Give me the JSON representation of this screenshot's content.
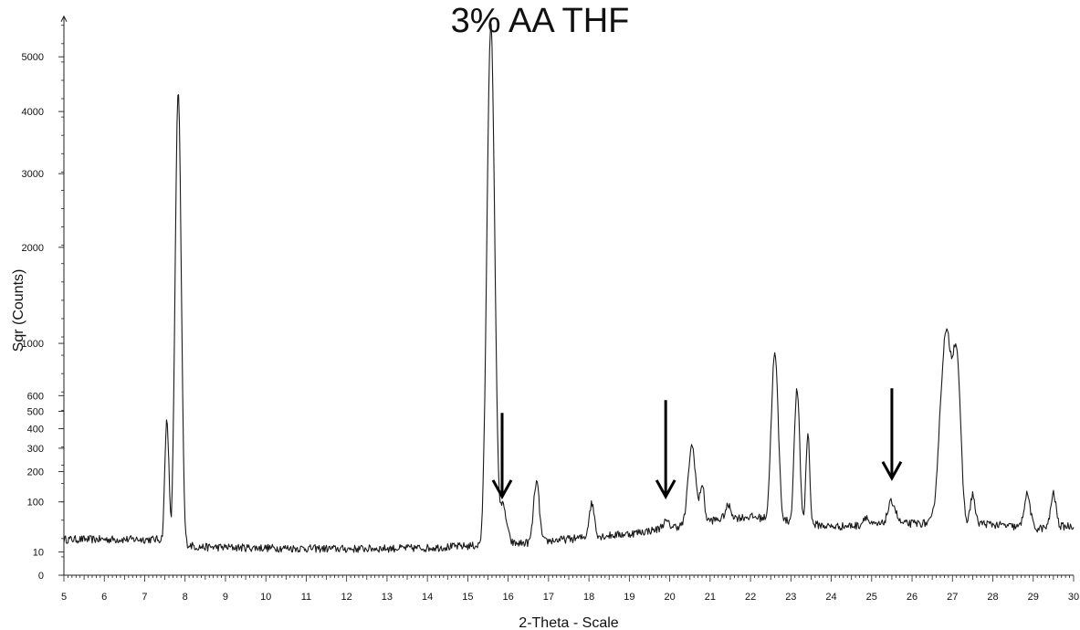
{
  "chart_data": {
    "type": "line",
    "title": "3% AA THF",
    "xlabel": "2-Theta - Scale",
    "ylabel": "Sqr (Counts)",
    "y_scale": "sqrt",
    "xlim": [
      5,
      30
    ],
    "ylim": [
      0,
      5700
    ],
    "x_ticks": [
      5,
      6,
      7,
      8,
      9,
      10,
      11,
      12,
      13,
      14,
      15,
      16,
      17,
      18,
      19,
      20,
      21,
      22,
      23,
      24,
      25,
      26,
      27,
      28,
      29,
      30
    ],
    "y_ticks": [
      0,
      10,
      100,
      200,
      300,
      400,
      500,
      600,
      1000,
      2000,
      3000,
      4000,
      5000
    ],
    "grid": false,
    "legend": "none",
    "line_color": "#1a1a1a",
    "noise_amplitude": 4,
    "baseline": [
      [
        5.0,
        24
      ],
      [
        7.5,
        24
      ],
      [
        8.3,
        15
      ],
      [
        10,
        14
      ],
      [
        12,
        13
      ],
      [
        14,
        14
      ],
      [
        15.0,
        16
      ],
      [
        16.3,
        19
      ],
      [
        17.0,
        22
      ],
      [
        18.0,
        27
      ],
      [
        19.0,
        32
      ],
      [
        20.0,
        42
      ],
      [
        21.0,
        56
      ],
      [
        22.0,
        64
      ],
      [
        24.0,
        44
      ],
      [
        25.0,
        47
      ],
      [
        26.0,
        50
      ],
      [
        27.5,
        52
      ],
      [
        29.0,
        40
      ],
      [
        30.0,
        46
      ]
    ],
    "peaks": [
      {
        "center": 7.55,
        "height": 430,
        "width": 0.04
      },
      {
        "center": 7.83,
        "height": 4330,
        "width": 0.055
      },
      {
        "center": 15.57,
        "height": 5650,
        "width": 0.07
      },
      {
        "center": 15.85,
        "height": 75,
        "width": 0.09
      },
      {
        "center": 16.7,
        "height": 140,
        "width": 0.06
      },
      {
        "center": 18.07,
        "height": 68,
        "width": 0.06
      },
      {
        "center": 19.9,
        "height": 12,
        "width": 0.08
      },
      {
        "center": 20.55,
        "height": 260,
        "width": 0.08
      },
      {
        "center": 20.8,
        "height": 100,
        "width": 0.05
      },
      {
        "center": 21.45,
        "height": 30,
        "width": 0.07
      },
      {
        "center": 22.6,
        "height": 850,
        "width": 0.07
      },
      {
        "center": 23.15,
        "height": 580,
        "width": 0.055
      },
      {
        "center": 23.42,
        "height": 320,
        "width": 0.04
      },
      {
        "center": 24.85,
        "height": 18,
        "width": 0.06
      },
      {
        "center": 25.5,
        "height": 52,
        "width": 0.09
      },
      {
        "center": 26.85,
        "height": 1050,
        "width": 0.12
      },
      {
        "center": 27.1,
        "height": 820,
        "width": 0.08
      },
      {
        "center": 27.5,
        "height": 70,
        "width": 0.05
      },
      {
        "center": 28.85,
        "height": 80,
        "width": 0.07
      },
      {
        "center": 29.5,
        "height": 80,
        "width": 0.06
      }
    ],
    "annotations": [
      {
        "type": "arrow",
        "x": 15.85,
        "y_tip": 115,
        "y_tail": 490
      },
      {
        "type": "arrow",
        "x": 19.9,
        "y_tip": 115,
        "y_tail": 570
      },
      {
        "type": "arrow",
        "x": 25.5,
        "y_tip": 175,
        "y_tail": 650
      }
    ]
  }
}
